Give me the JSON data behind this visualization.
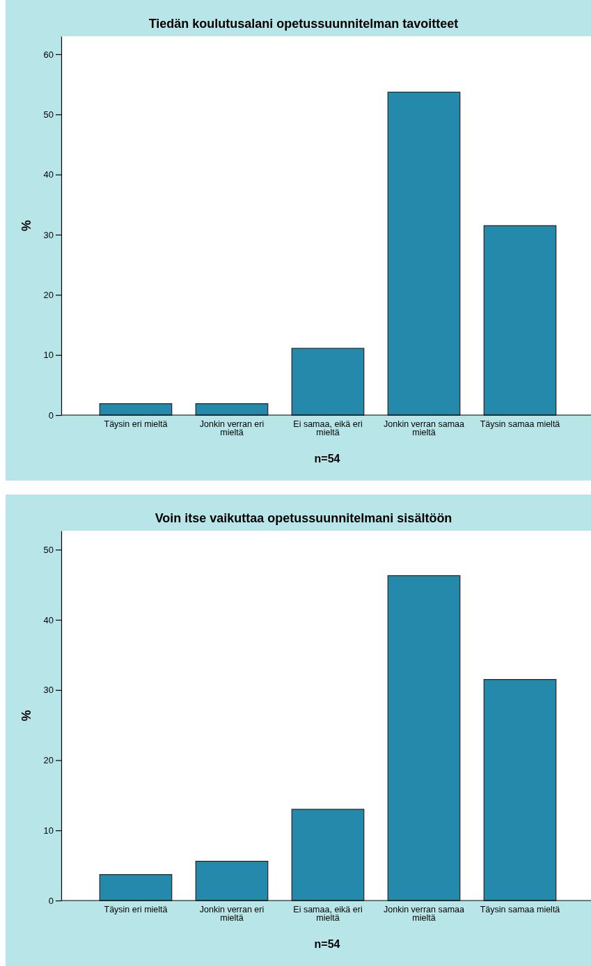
{
  "chart_data": [
    {
      "type": "bar",
      "title": "Tiedän koulutusalani opetussuunnitelman tavoitteet",
      "xlabel": "n=54",
      "ylabel": "%",
      "categories": [
        "Täysin eri mieltä",
        "Jonkin verran eri mieltä",
        "Ei samaa, eikä eri mieltä",
        "Jonkin verran samaa mieltä",
        "Täysin samaa mieltä"
      ],
      "values": [
        1.9,
        1.9,
        11.1,
        53.7,
        31.5
      ],
      "color": "#2589ab",
      "ylim": [
        0,
        63
      ],
      "yticks": [
        0,
        10,
        20,
        30,
        40,
        50,
        60
      ]
    },
    {
      "type": "bar",
      "title": "Voin itse vaikuttaa opetussuunnitelmani sisältöön",
      "xlabel": "n=54",
      "ylabel": "%",
      "categories": [
        "Täysin eri mieltä",
        "Jonkin verran eri mieltä",
        "Ei samaa, eikä eri mieltä",
        "Jonkin verran samaa mieltä",
        "Täysin samaa mieltä"
      ],
      "values": [
        3.7,
        5.6,
        13.0,
        46.3,
        31.5
      ],
      "color": "#2589ab",
      "ylim": [
        0,
        52.7
      ],
      "yticks": [
        0,
        10,
        20,
        30,
        40,
        50
      ]
    }
  ]
}
